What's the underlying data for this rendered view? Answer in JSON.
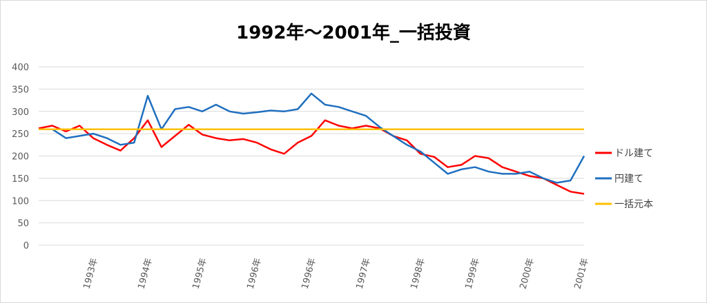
{
  "chart_data": {
    "type": "line",
    "title": "1992年～2001年_一括投資",
    "xlabel": "",
    "ylabel": "",
    "ylim": [
      0,
      400
    ],
    "yticks": [
      0,
      50,
      100,
      150,
      200,
      250,
      300,
      350,
      400
    ],
    "x_tick_labels": [
      "1993年",
      "1994年",
      "1995年",
      "1996年",
      "1996年",
      "1997年",
      "1998年",
      "1999年",
      "2000年",
      "2001年"
    ],
    "grid": true,
    "legend": "right",
    "x": [
      0,
      0.25,
      0.5,
      0.75,
      1,
      1.25,
      1.5,
      1.75,
      2,
      2.25,
      2.5,
      2.75,
      3,
      3.25,
      3.5,
      3.75,
      4,
      4.25,
      4.5,
      4.75,
      5,
      5.25,
      5.5,
      5.75,
      6,
      6.25,
      6.5,
      6.75,
      7,
      7.25,
      7.5,
      7.75,
      8,
      8.25,
      8.5,
      8.75,
      9,
      9.25,
      9.5,
      9.75,
      10
    ],
    "series": [
      {
        "name": "ドル建て",
        "color": "#ff0000",
        "values": [
          262,
          268,
          255,
          268,
          240,
          225,
          212,
          240,
          280,
          220,
          245,
          270,
          248,
          240,
          235,
          238,
          230,
          215,
          205,
          230,
          245,
          280,
          268,
          262,
          268,
          262,
          245,
          235,
          205,
          198,
          175,
          180,
          200,
          195,
          175,
          165,
          155,
          150,
          135,
          120,
          115
        ]
      },
      {
        "name": "円建て",
        "color": "#1f6fbf",
        "values": [
          260,
          260,
          240,
          245,
          250,
          240,
          225,
          230,
          335,
          260,
          305,
          310,
          300,
          315,
          300,
          295,
          298,
          302,
          300,
          305,
          340,
          315,
          310,
          300,
          290,
          265,
          245,
          225,
          210,
          185,
          160,
          170,
          175,
          165,
          160,
          160,
          165,
          150,
          140,
          145,
          200
        ]
      },
      {
        "name": "一括元本",
        "color": "#ffc000",
        "values": [
          260,
          260,
          260,
          260,
          260,
          260,
          260,
          260,
          260,
          260,
          260,
          260,
          260,
          260,
          260,
          260,
          260,
          260,
          260,
          260,
          260,
          260,
          260,
          260,
          260,
          260,
          260,
          260,
          260,
          260,
          260,
          260,
          260,
          260,
          260,
          260,
          260,
          260,
          260,
          260,
          260
        ]
      }
    ]
  }
}
